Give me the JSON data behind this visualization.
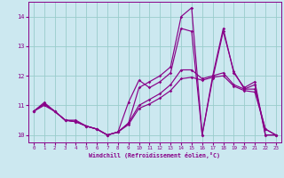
{
  "xlabel": "Windchill (Refroidissement éolien,°C)",
  "bg_color": "#cce8f0",
  "line_color": "#880088",
  "grid_color": "#99cccc",
  "xlim": [
    -0.5,
    23.5
  ],
  "ylim": [
    9.75,
    14.5
  ],
  "xticks": [
    0,
    1,
    2,
    3,
    4,
    5,
    6,
    7,
    8,
    9,
    10,
    11,
    12,
    13,
    14,
    15,
    16,
    17,
    18,
    19,
    20,
    21,
    22,
    23
  ],
  "yticks": [
    10,
    11,
    12,
    13,
    14
  ],
  "lines": [
    {
      "x": [
        0,
        1,
        2,
        3,
        4,
        5,
        6,
        7,
        8,
        9,
        10,
        11,
        12,
        13,
        14,
        15,
        16,
        17,
        18,
        19,
        20,
        21,
        22,
        23
      ],
      "y": [
        10.8,
        11.1,
        10.8,
        10.5,
        10.5,
        10.3,
        10.2,
        10.0,
        10.1,
        10.4,
        11.6,
        11.8,
        12.0,
        12.3,
        14.0,
        14.3,
        10.0,
        12.0,
        13.6,
        12.1,
        11.6,
        11.8,
        10.0,
        10.0
      ]
    },
    {
      "x": [
        0,
        1,
        2,
        3,
        4,
        5,
        6,
        7,
        8,
        9,
        10,
        11,
        12,
        13,
        14,
        15,
        16,
        17,
        18,
        19,
        20,
        21,
        22,
        23
      ],
      "y": [
        10.8,
        11.05,
        10.8,
        10.5,
        10.45,
        10.3,
        10.2,
        10.0,
        10.1,
        10.4,
        11.0,
        11.2,
        11.4,
        11.7,
        12.2,
        12.2,
        11.9,
        12.0,
        12.1,
        11.7,
        11.55,
        11.55,
        10.2,
        10.0
      ]
    },
    {
      "x": [
        0,
        1,
        2,
        3,
        4,
        5,
        6,
        7,
        8,
        9,
        10,
        11,
        12,
        13,
        14,
        15,
        16,
        17,
        18,
        19,
        20,
        21,
        22,
        23
      ],
      "y": [
        10.8,
        11.05,
        10.8,
        10.5,
        10.45,
        10.3,
        10.2,
        10.0,
        10.1,
        10.35,
        10.9,
        11.05,
        11.25,
        11.5,
        11.9,
        11.95,
        11.85,
        11.95,
        12.0,
        11.65,
        11.5,
        11.45,
        10.2,
        10.0
      ]
    },
    {
      "x": [
        0,
        1,
        2,
        3,
        4,
        5,
        6,
        7,
        8,
        9,
        10,
        11,
        12,
        13,
        14,
        15,
        16,
        17,
        18,
        19,
        20,
        21,
        22,
        23
      ],
      "y": [
        10.8,
        11.0,
        10.8,
        10.5,
        10.45,
        10.3,
        10.2,
        10.0,
        10.1,
        11.1,
        11.85,
        11.6,
        11.8,
        12.1,
        13.6,
        13.5,
        10.0,
        11.9,
        13.5,
        12.15,
        11.55,
        11.7,
        10.0,
        10.0
      ]
    }
  ]
}
